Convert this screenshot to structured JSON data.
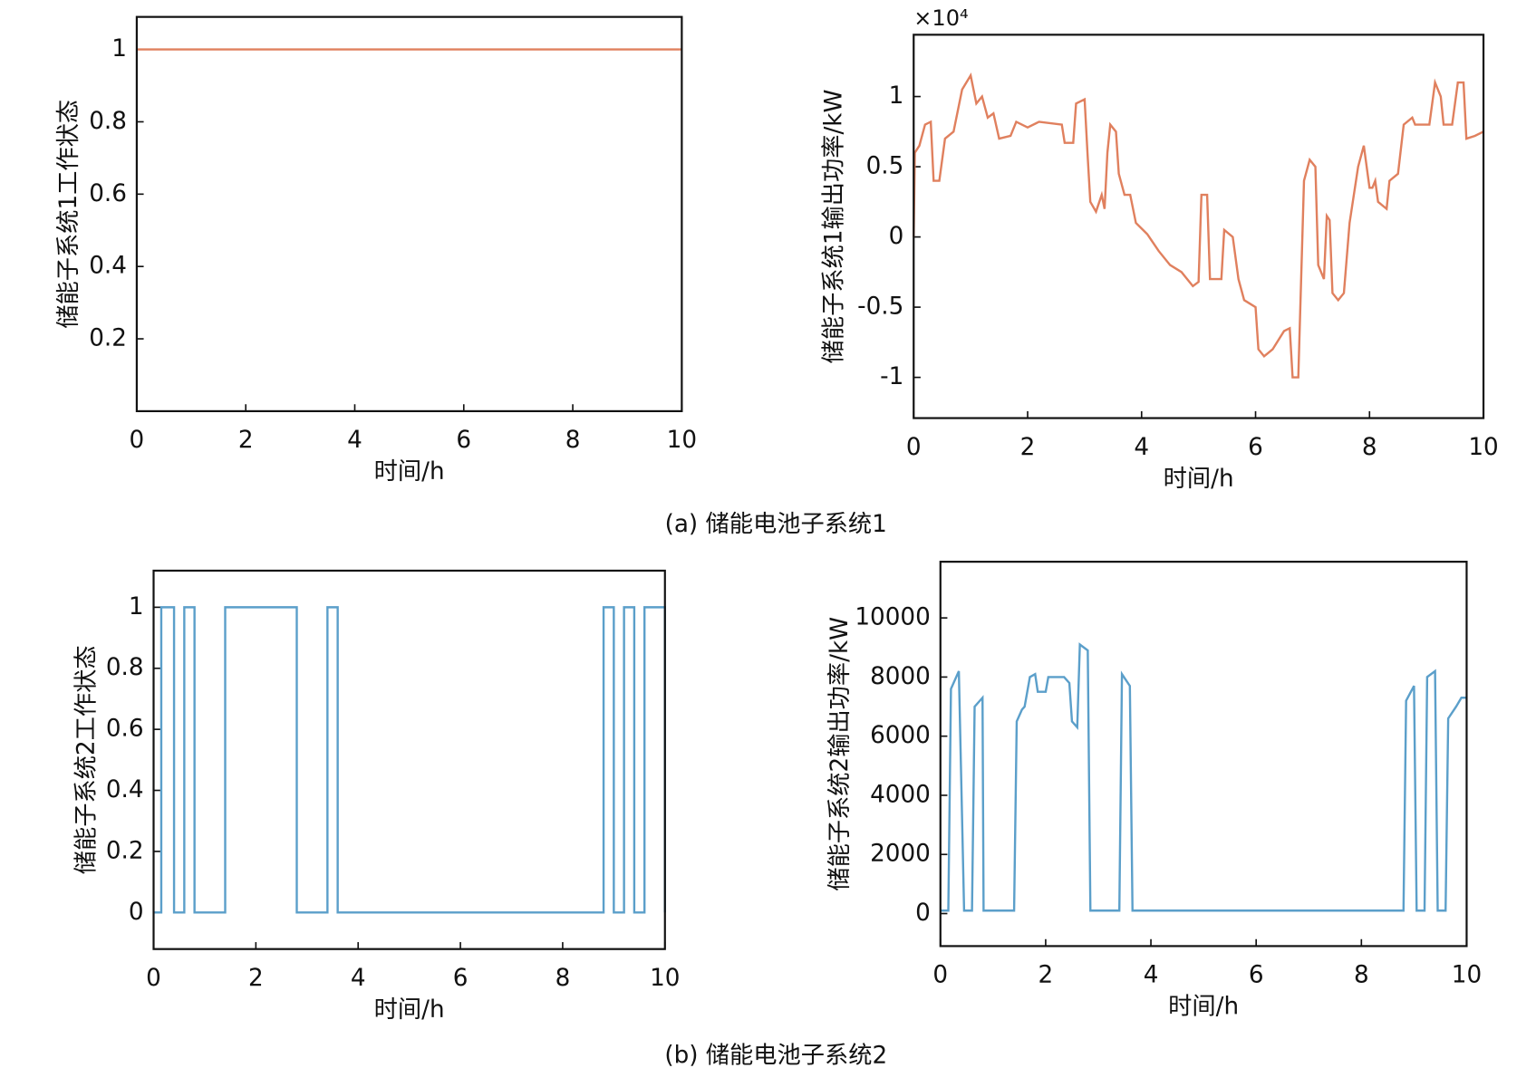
{
  "captions": [
    "(a) 储能电池子系统1",
    "(b) 储能电池子系统2"
  ],
  "chart_data": [
    {
      "type": "line",
      "ylabel": "储能子系统1工作状态",
      "xlabel": "时间/h",
      "color": "#e0805e",
      "x": [
        0,
        10
      ],
      "values": [
        1,
        1
      ],
      "xlim": [
        0,
        10
      ],
      "xticks": [
        0,
        2,
        4,
        6,
        8,
        10
      ],
      "ylim": [
        0,
        1.09
      ],
      "yticks": [
        0.2,
        0.4,
        0.6,
        0.8,
        1
      ]
    },
    {
      "type": "line",
      "ylabel": "储能子系统1输出功率/kW",
      "xlabel": "时间/h",
      "y_multiplier": "×10⁴",
      "color": "#e0805e",
      "x": [
        0,
        0.02,
        0.1,
        0.2,
        0.3,
        0.35,
        0.45,
        0.55,
        0.7,
        0.85,
        1.0,
        1.1,
        1.2,
        1.3,
        1.4,
        1.5,
        1.7,
        1.8,
        2.0,
        2.2,
        2.6,
        2.65,
        2.8,
        2.85,
        3.0,
        3.05,
        3.1,
        3.2,
        3.3,
        3.35,
        3.4,
        3.45,
        3.55,
        3.6,
        3.7,
        3.8,
        3.9,
        4.1,
        4.3,
        4.5,
        4.7,
        4.8,
        4.9,
        5.0,
        5.05,
        5.15,
        5.2,
        5.4,
        5.45,
        5.6,
        5.7,
        5.8,
        6.0,
        6.05,
        6.15,
        6.3,
        6.5,
        6.6,
        6.65,
        6.75,
        6.85,
        6.95,
        7.05,
        7.1,
        7.2,
        7.25,
        7.3,
        7.35,
        7.45,
        7.55,
        7.65,
        7.8,
        7.9,
        8.0,
        8.05,
        8.1,
        8.15,
        8.3,
        8.35,
        8.5,
        8.6,
        8.75,
        8.8,
        9.05,
        9.15,
        9.25,
        9.3,
        9.45,
        9.55,
        9.65,
        9.7,
        9.85,
        10
      ],
      "values": [
        0,
        0.6,
        0.65,
        0.8,
        0.82,
        0.4,
        0.4,
        0.7,
        0.75,
        1.05,
        1.15,
        0.95,
        1.0,
        0.85,
        0.88,
        0.7,
        0.72,
        0.82,
        0.78,
        0.82,
        0.8,
        0.67,
        0.67,
        0.95,
        0.98,
        0.6,
        0.25,
        0.18,
        0.3,
        0.2,
        0.6,
        0.8,
        0.75,
        0.45,
        0.3,
        0.3,
        0.1,
        0.02,
        -0.1,
        -0.2,
        -0.25,
        -0.3,
        -0.35,
        -0.32,
        0.3,
        0.3,
        -0.3,
        -0.3,
        0.05,
        0.0,
        -0.3,
        -0.45,
        -0.5,
        -0.8,
        -0.85,
        -0.8,
        -0.67,
        -0.65,
        -1.0,
        -1.0,
        0.4,
        0.55,
        0.5,
        -0.2,
        -0.3,
        0.15,
        0.12,
        -0.4,
        -0.45,
        -0.4,
        0.1,
        0.5,
        0.65,
        0.35,
        0.35,
        0.4,
        0.25,
        0.2,
        0.4,
        0.45,
        0.8,
        0.85,
        0.8,
        0.8,
        1.1,
        1.0,
        0.8,
        0.8,
        1.1,
        1.1,
        0.7,
        0.72,
        0.75
      ],
      "xlim": [
        0,
        10
      ],
      "xticks": [
        0,
        2,
        4,
        6,
        8,
        10
      ],
      "ylim": [
        -1.29,
        1.44
      ],
      "yticks": [
        -1,
        -0.5,
        0,
        0.5,
        1
      ]
    },
    {
      "type": "line",
      "ylabel": "储能子系统2工作状态",
      "xlabel": "时间/h",
      "color": "#5b9fca",
      "x": [
        0,
        0.15,
        0.15,
        0.4,
        0.4,
        0.6,
        0.6,
        0.8,
        0.8,
        1.4,
        1.4,
        2.8,
        2.8,
        3.4,
        3.4,
        3.6,
        3.6,
        8.8,
        8.8,
        9.0,
        9.0,
        9.2,
        9.2,
        9.4,
        9.4,
        9.6,
        9.6,
        10,
        10
      ],
      "values": [
        0,
        0,
        1,
        1,
        0,
        0,
        1,
        1,
        0,
        0,
        1,
        1,
        0,
        0,
        1,
        1,
        0,
        0,
        1,
        1,
        0,
        0,
        1,
        1,
        0,
        0,
        1,
        1,
        0
      ],
      "xlim": [
        0,
        10
      ],
      "xticks": [
        0,
        2,
        4,
        6,
        8,
        10
      ],
      "ylim": [
        -0.12,
        1.12
      ],
      "yticks": [
        0,
        0.2,
        0.4,
        0.6,
        0.8,
        1
      ]
    },
    {
      "type": "line",
      "ylabel": "储能子系统2输出功率/kW",
      "xlabel": "时间/h",
      "color": "#5b9fca",
      "x": [
        0,
        0.15,
        0.2,
        0.35,
        0.45,
        0.6,
        0.65,
        0.8,
        0.82,
        1.4,
        1.45,
        1.55,
        1.6,
        1.7,
        1.8,
        1.85,
        2.0,
        2.05,
        2.35,
        2.45,
        2.5,
        2.6,
        2.65,
        2.8,
        2.85,
        3.4,
        3.45,
        3.6,
        3.65,
        8.8,
        8.85,
        9.0,
        9.05,
        9.2,
        9.25,
        9.4,
        9.45,
        9.6,
        9.65,
        9.8,
        9.9,
        10
      ],
      "values": [
        100,
        100,
        7600,
        8200,
        100,
        100,
        7000,
        7300,
        100,
        100,
        6500,
        6900,
        7000,
        8000,
        8100,
        7500,
        7500,
        8000,
        8000,
        7800,
        6500,
        6300,
        9100,
        8900,
        100,
        100,
        8100,
        7700,
        100,
        100,
        7200,
        7700,
        100,
        100,
        8000,
        8200,
        100,
        100,
        6600,
        7000,
        7300,
        7300
      ],
      "xlim": [
        0,
        10
      ],
      "xticks": [
        0,
        2,
        4,
        6,
        8,
        10
      ],
      "ylim": [
        -1100,
        11900
      ],
      "yticks": [
        0,
        2000,
        4000,
        6000,
        8000,
        10000
      ]
    }
  ]
}
